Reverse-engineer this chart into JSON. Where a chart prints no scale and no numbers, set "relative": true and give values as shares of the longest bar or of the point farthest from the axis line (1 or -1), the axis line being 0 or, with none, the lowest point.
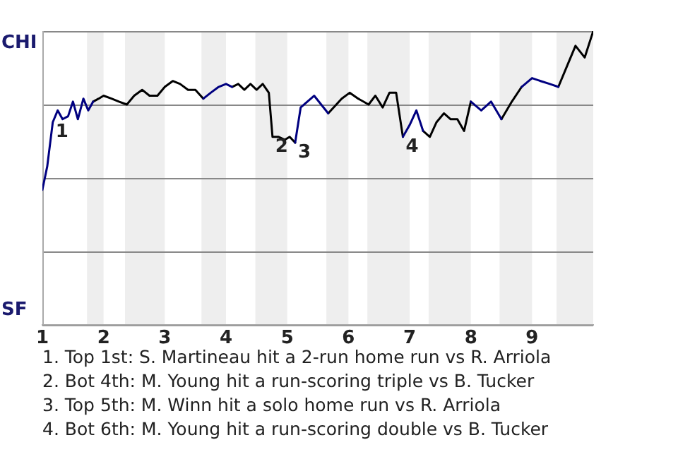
{
  "chart_data": {
    "type": "line",
    "relative": true,
    "xlim": [
      1,
      10
    ],
    "xticks": [
      1,
      2,
      3,
      4,
      5,
      6,
      7,
      8,
      9
    ],
    "grid": "y",
    "legend": false,
    "marker": "none",
    "line_style": "solid",
    "x": [
      1,
      1.08,
      1.17,
      1.25,
      1.33,
      1.42,
      1.5,
      1.58,
      1.67,
      1.75,
      1.83,
      1.92,
      2,
      2.13,
      2.25,
      2.38,
      2.5,
      2.63,
      2.75,
      2.88,
      3,
      3.13,
      3.25,
      3.38,
      3.5,
      3.63,
      3.75,
      3.88,
      4,
      4.1,
      4.2,
      4.3,
      4.4,
      4.5,
      4.6,
      4.7,
      4.76,
      4.86,
      4.96,
      5.04,
      5.13,
      5.22,
      5.33,
      5.44,
      5.67,
      5.89,
      6.02,
      6.16,
      6.33,
      6.44,
      6.56,
      6.67,
      6.78,
      6.89,
      7,
      7.11,
      7.22,
      7.33,
      7.44,
      7.56,
      7.67,
      7.78,
      7.89,
      8,
      8.17,
      8.33,
      8.5,
      8.67,
      8.83,
      9,
      9.14,
      9.29,
      9.43,
      9.57,
      9.71,
      9.86,
      10
    ],
    "series": [
      {
        "color": "#000080",
        "values": [
          0.46,
          0.54,
          0.69,
          0.73,
          0.7,
          0.71,
          0.76,
          0.7,
          0.77,
          0.73,
          0.76,
          null,
          null,
          null,
          null,
          null,
          null,
          null,
          null,
          null,
          null,
          null,
          null,
          null,
          null,
          0.77,
          0.79,
          0.81,
          0.82,
          0.81,
          null,
          null,
          null,
          null,
          null,
          null,
          null,
          null,
          null,
          null,
          0.62,
          0.74,
          0.76,
          0.78,
          0.72,
          null,
          null,
          null,
          null,
          null,
          null,
          null,
          null,
          0.64,
          0.68,
          0.73,
          0.66,
          null,
          null,
          null,
          null,
          null,
          null,
          0.76,
          0.73,
          0.76,
          0.7,
          null,
          0.81,
          0.84,
          0.83,
          0.82,
          0.81,
          null,
          null,
          null,
          null
        ]
      },
      {
        "color": "#000000",
        "values": [
          null,
          null,
          null,
          null,
          null,
          null,
          null,
          null,
          null,
          null,
          0.76,
          0.77,
          0.78,
          0.77,
          0.76,
          0.75,
          0.78,
          0.8,
          0.78,
          0.78,
          0.81,
          0.83,
          0.82,
          0.8,
          0.8,
          0.77,
          null,
          null,
          null,
          0.81,
          0.82,
          0.8,
          0.82,
          0.8,
          0.82,
          0.79,
          0.64,
          0.64,
          0.63,
          0.64,
          0.62,
          null,
          null,
          null,
          0.72,
          0.77,
          0.79,
          0.77,
          0.75,
          0.78,
          0.74,
          0.79,
          0.79,
          0.64,
          null,
          null,
          0.66,
          0.64,
          0.69,
          0.72,
          0.7,
          0.7,
          0.66,
          0.76,
          null,
          null,
          0.7,
          0.76,
          0.81,
          null,
          null,
          null,
          0.81,
          0.88,
          0.95,
          0.91,
          1
        ]
      }
    ],
    "bands": [
      {
        "axis": "x",
        "from": 1.73,
        "to": 2,
        "color": "#eeeeee"
      },
      {
        "axis": "x",
        "from": 2.35,
        "to": 3,
        "color": "#eeeeee"
      },
      {
        "axis": "x",
        "from": 3.6,
        "to": 4,
        "color": "#eeeeee"
      },
      {
        "axis": "x",
        "from": 4.48,
        "to": 5,
        "color": "#eeeeee"
      },
      {
        "axis": "x",
        "from": 5.64,
        "to": 6,
        "color": "#eeeeee"
      },
      {
        "axis": "x",
        "from": 6.31,
        "to": 7,
        "color": "#eeeeee"
      },
      {
        "axis": "x",
        "from": 7.31,
        "to": 8,
        "color": "#eeeeee"
      },
      {
        "axis": "x",
        "from": 8.47,
        "to": 9,
        "color": "#eeeeee"
      },
      {
        "axis": "x",
        "from": 9.4,
        "to": 10,
        "color": "#eeeeee"
      }
    ],
    "annotations": [
      "CHI",
      "SF",
      {
        "text": "1",
        "x": 1.17,
        "y": 0.69
      },
      {
        "text": "2",
        "x": 4.76,
        "y": 0.64
      },
      {
        "text": "3",
        "x": 5.13,
        "y": 0.62
      },
      {
        "text": "4",
        "x": 6.89,
        "y": 0.64
      },
      "1. Top 1st: S. Martineau hit a 2-run home run vs R. Arriola",
      "2. Bot 4th: M. Young hit a run-scoring triple vs B. Tucker",
      "3. Top 5th: M. Winn hit a solo home run vs R. Arriola",
      "4. Bot 6th: M. Young hit a run-scoring double vs B. Tucker"
    ]
  }
}
